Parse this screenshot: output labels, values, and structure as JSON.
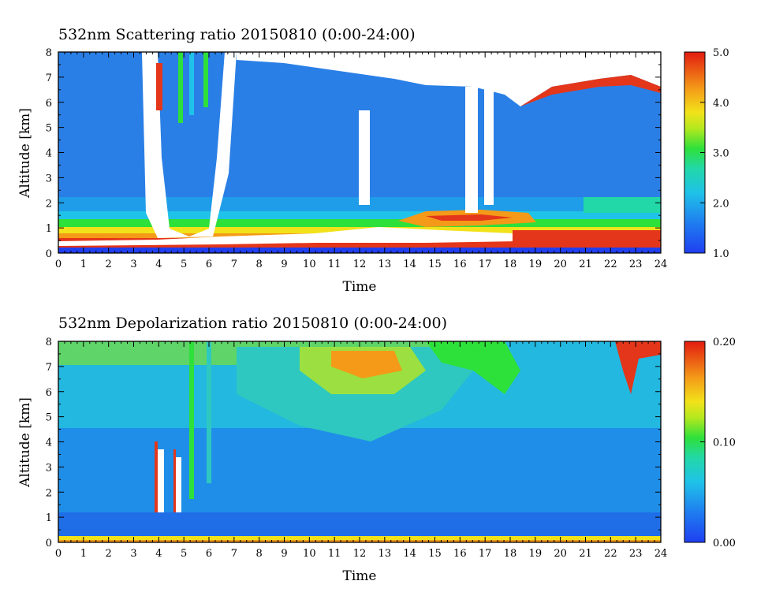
{
  "chart_data": [
    {
      "type": "heatmap",
      "title": "532nm Scattering ratio  20150810 (0:00-24:00)",
      "xlabel": "Time",
      "ylabel": "Altitude [km]",
      "xlim": [
        0,
        24
      ],
      "ylim": [
        0,
        8
      ],
      "x_ticks": [
        0,
        1,
        2,
        3,
        4,
        5,
        6,
        7,
        8,
        9,
        10,
        11,
        12,
        13,
        14,
        15,
        16,
        17,
        18,
        19,
        20,
        21,
        22,
        23,
        24
      ],
      "y_ticks": [
        0,
        1,
        2,
        3,
        4,
        5,
        6,
        7,
        8
      ],
      "colorbar": {
        "range": [
          1.0,
          5.0
        ],
        "tick_labels": [
          "1.0",
          "2.0",
          "3.0",
          "4.0",
          "5.0"
        ],
        "tick_values": [
          1.0,
          2.0,
          3.0,
          4.0,
          5.0
        ]
      },
      "colors": {
        "low": "#1f3ff0",
        "mid_low": "#1fb8e8",
        "mid": "#2ee03a",
        "mid_high": "#f2e21a",
        "high": "#e21b10",
        "saturated": "#ffffff"
      }
    },
    {
      "type": "heatmap",
      "title": "532nm Depolarization ratio  20150810 (0:00-24:00)",
      "xlabel": "Time",
      "ylabel": "Altitude [km]",
      "xlim": [
        0,
        24
      ],
      "ylim": [
        0,
        8
      ],
      "x_ticks": [
        0,
        1,
        2,
        3,
        4,
        5,
        6,
        7,
        8,
        9,
        10,
        11,
        12,
        13,
        14,
        15,
        16,
        17,
        18,
        19,
        20,
        21,
        22,
        23,
        24
      ],
      "y_ticks": [
        0,
        1,
        2,
        3,
        4,
        5,
        6,
        7,
        8
      ],
      "colorbar": {
        "range": [
          0.0,
          0.2
        ],
        "tick_labels": [
          "0.00",
          "0.10",
          "0.20"
        ],
        "tick_values": [
          0.0,
          0.1,
          0.2
        ]
      },
      "colors": {
        "low": "#1f3ff0",
        "mid_low": "#1fb8e8",
        "mid": "#2ee03a",
        "mid_high": "#f2e21a",
        "high": "#e21b10",
        "saturated": "#ffffff"
      }
    }
  ]
}
